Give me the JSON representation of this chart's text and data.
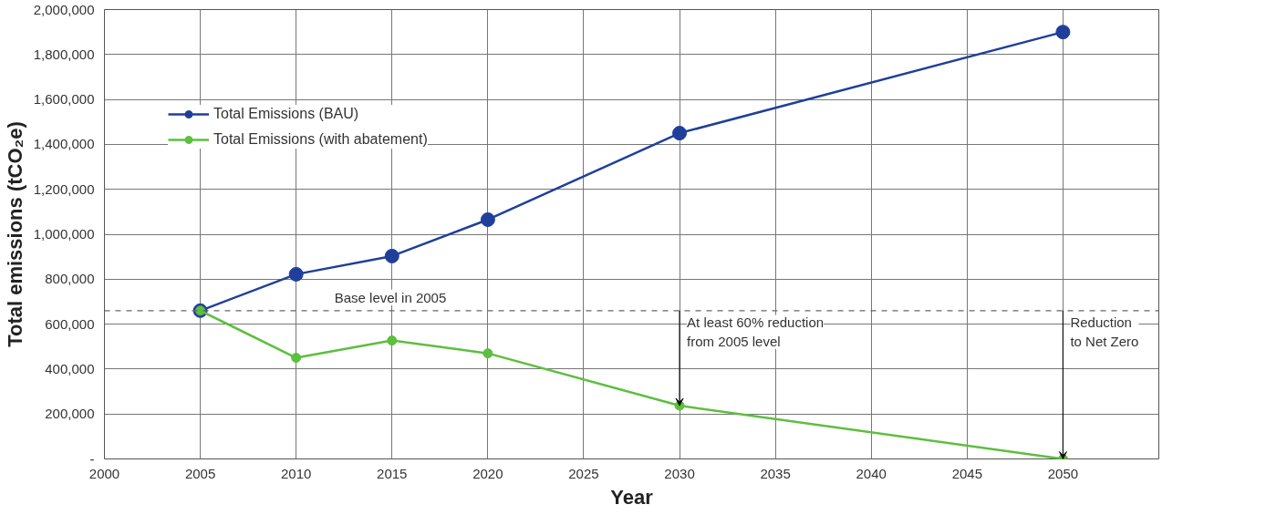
{
  "chart_data": {
    "type": "line",
    "xlabel": "Year",
    "ylabel": "Total emissions (tCO₂e)",
    "x": [
      2005,
      2010,
      2015,
      2020,
      2030,
      2050
    ],
    "series": [
      {
        "name": "Total Emissions (BAU)",
        "color": "#1f3f9a",
        "values": [
          660000,
          822000,
          903000,
          1065000,
          1450000,
          1900000
        ]
      },
      {
        "name": "Total Emissions (with abatement)",
        "color": "#5cbf3f",
        "values": [
          660000,
          450000,
          527000,
          470000,
          237000,
          0
        ]
      }
    ],
    "xlim": [
      2000,
      2055
    ],
    "xticks": [
      2000,
      2005,
      2010,
      2015,
      2020,
      2025,
      2030,
      2035,
      2040,
      2045,
      2050
    ],
    "ylim": [
      0,
      2000000
    ],
    "yticks": [
      {
        "value": 0,
        "label": "-"
      },
      {
        "value": 200000,
        "label": "200,000"
      },
      {
        "value": 400000,
        "label": "400,000"
      },
      {
        "value": 600000,
        "label": "600,000"
      },
      {
        "value": 800000,
        "label": "800,000"
      },
      {
        "value": 1000000,
        "label": "1,000,000"
      },
      {
        "value": 1200000,
        "label": "1,200,000"
      },
      {
        "value": 1400000,
        "label": "1,400,000"
      },
      {
        "value": 1600000,
        "label": "1,600,000"
      },
      {
        "value": 1800000,
        "label": "1,800,000"
      },
      {
        "value": 2000000,
        "label": "2,000,000"
      }
    ],
    "ref_lines": [
      {
        "axis": "y",
        "value": 660000,
        "label": "Base level in 2005",
        "color": "#666666",
        "line_style": "dashed"
      }
    ],
    "annotations": [
      {
        "text": "At least 60% reduction\nfrom 2005 level",
        "x": 2030,
        "y": 237000
      },
      {
        "text": "Reduction\nto Net Zero",
        "x": 2050,
        "y": 0
      }
    ],
    "grid": true,
    "legend": "top left",
    "marker": "circle",
    "line_style": "solid"
  }
}
